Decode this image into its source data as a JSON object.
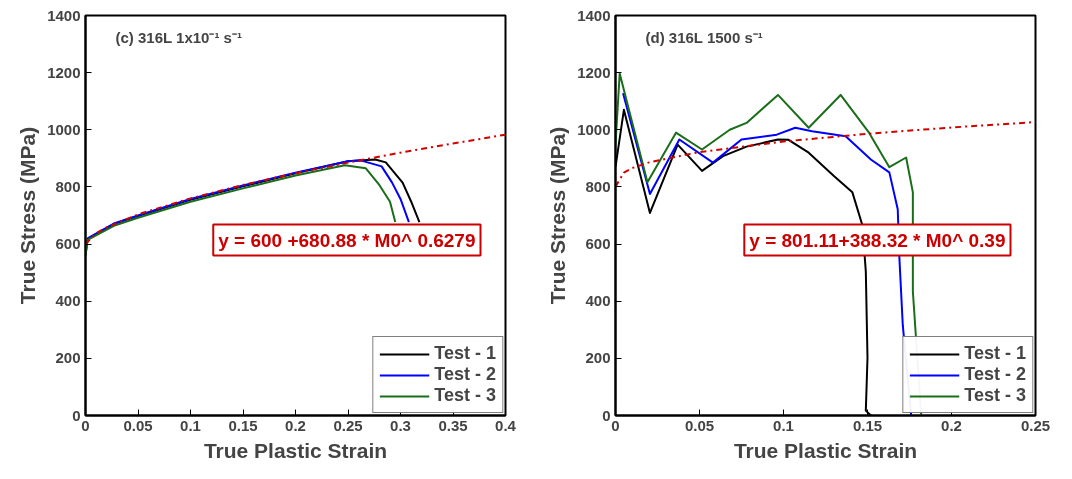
{
  "chart_data": [
    {
      "type": "line",
      "xlabel": "True Plastic Strain",
      "ylabel": "True Stress (MPa)",
      "xlim": [
        0,
        0.4
      ],
      "ylim": [
        0,
        1400
      ],
      "xticks": [
        0,
        0.05,
        0.1,
        0.15,
        0.2,
        0.25,
        0.3,
        0.35,
        0.4
      ],
      "yticks": [
        0,
        200,
        400,
        600,
        800,
        1000,
        1200,
        1400
      ],
      "grid": false,
      "legend": "bottom right",
      "annotations": [
        "(c)    316L   1x10⁻¹ s⁻¹",
        "y = 600 +680.88 * M0^ 0.6279"
      ],
      "series": [
        {
          "name": "Test - 1",
          "color": "#000000",
          "line_style": "solid",
          "x": [
            0,
            0.002,
            0.027,
            0.05,
            0.1,
            0.15,
            0.2,
            0.25,
            0.276,
            0.286,
            0.302,
            0.31,
            0.318
          ],
          "values": [
            560,
            618,
            670,
            698,
            755,
            802,
            848,
            890,
            896,
            886,
            815,
            750,
            677
          ]
        },
        {
          "name": "Test - 2",
          "color": "#0000ff",
          "line_style": "solid",
          "x": [
            0.002,
            0.027,
            0.05,
            0.1,
            0.15,
            0.2,
            0.25,
            0.262,
            0.282,
            0.292,
            0.3,
            0.308
          ],
          "values": [
            620,
            672,
            700,
            758,
            805,
            850,
            890,
            893,
            872,
            815,
            758,
            677
          ]
        },
        {
          "name": "Test - 3",
          "color": "#1a6e1a",
          "line_style": "solid",
          "x": [
            0,
            0.002,
            0.027,
            0.05,
            0.1,
            0.15,
            0.2,
            0.247,
            0.267,
            0.28,
            0.29,
            0.295
          ],
          "values": [
            560,
            615,
            664,
            692,
            748,
            795,
            840,
            876,
            865,
            806,
            748,
            677
          ]
        },
        {
          "color": "#d00000",
          "line_style": "dashed",
          "x": [
            0,
            0.01,
            0.02,
            0.05,
            0.1,
            0.15,
            0.2,
            0.25,
            0.3,
            0.35,
            0.4
          ],
          "values": [
            600,
            638,
            658,
            704,
            760,
            807,
            848,
            885,
            920,
            952,
            983
          ]
        }
      ]
    },
    {
      "type": "line",
      "xlabel": "True Plastic Strain",
      "ylabel": "True Stress (MPa)",
      "xlim": [
        0,
        0.25
      ],
      "ylim": [
        0,
        1400
      ],
      "xticks": [
        0,
        0.05,
        0.1,
        0.15,
        0.2,
        0.25
      ],
      "yticks": [
        0,
        200,
        400,
        600,
        800,
        1000,
        1200,
        1400
      ],
      "grid": false,
      "legend": "bottom right",
      "annotations": [
        "(d)   316L   1500 s⁻¹",
        "y = 801.11+388.32 * M0^ 0.39"
      ],
      "series": [
        {
          "name": "Test - 1",
          "color": "#000000",
          "line_style": "solid",
          "x": [
            0,
            0.005,
            0.0205,
            0.037,
            0.0515,
            0.064,
            0.078,
            0.0967,
            0.103,
            0.115,
            0.13,
            0.141,
            0.147,
            0.149,
            0.15,
            0.149,
            0.152
          ],
          "values": [
            870,
            1070,
            709,
            948,
            856,
            908,
            941,
            966,
            965,
            920,
            838,
            781,
            665,
            503,
            202,
            17,
            0
          ]
        },
        {
          "name": "Test - 2",
          "color": "#0000ff",
          "line_style": "solid",
          "x": [
            0.0045,
            0.0205,
            0.038,
            0.058,
            0.075,
            0.096,
            0.107,
            0.117,
            0.137,
            0.152,
            0.163,
            0.168,
            0.169,
            0.171,
            0.176
          ],
          "values": [
            1128,
            775,
            966,
            885,
            966,
            983,
            1007,
            995,
            977,
            896,
            851,
            722,
            549,
            316,
            0
          ]
        },
        {
          "name": "Test - 3",
          "color": "#1a6e1a",
          "line_style": "solid",
          "x": [
            0,
            0.0025,
            0.019,
            0.036,
            0.0515,
            0.068,
            0.078,
            0.0967,
            0.115,
            0.134,
            0.151,
            0.163,
            0.173,
            0.177,
            0.177,
            0.182
          ],
          "values": [
            950,
            1197,
            816,
            990,
            931,
            1000,
            1024,
            1122,
            1007,
            1122,
            989,
            869,
            903,
            781,
            434,
            0
          ]
        },
        {
          "color": "#d00000",
          "line_style": "dashed",
          "x": [
            0,
            0.005,
            0.01,
            0.02,
            0.05,
            0.1,
            0.15,
            0.2,
            0.25
          ],
          "values": [
            801,
            850,
            866,
            886,
            922,
            959,
            986,
            1008,
            1027
          ]
        }
      ]
    }
  ]
}
